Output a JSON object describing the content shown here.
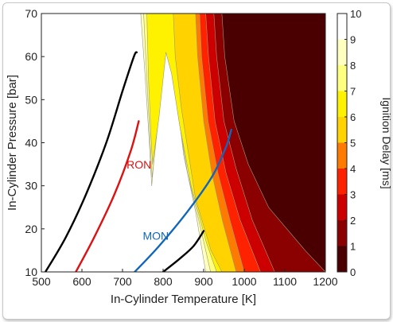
{
  "chart_data": {
    "type": "contour",
    "xlabel": "In-Cylinder Temperature [K]",
    "ylabel": "In-Cylinder Pressure [bar]",
    "colorbar_label": "Ignition Delay [ms]",
    "xlim": [
      500,
      1200
    ],
    "ylim": [
      10,
      70
    ],
    "xticks": [
      500,
      600,
      700,
      800,
      900,
      1000,
      1100,
      1200
    ],
    "yticks": [
      10,
      20,
      30,
      40,
      50,
      60,
      70
    ],
    "colorbar_ticks": [
      0,
      1,
      2,
      3,
      4,
      5,
      6,
      7,
      8,
      9,
      10
    ],
    "colorbar_levels": [
      {
        "from": 0,
        "to": 1,
        "color": "#4a0000"
      },
      {
        "from": 1,
        "to": 2,
        "color": "#8b0000"
      },
      {
        "from": 2,
        "to": 3,
        "color": "#cc0000"
      },
      {
        "from": 3,
        "to": 4,
        "color": "#ff2200"
      },
      {
        "from": 4,
        "to": 5,
        "color": "#ff7a00"
      },
      {
        "from": 5,
        "to": 6,
        "color": "#ffd200"
      },
      {
        "from": 6,
        "to": 7,
        "color": "#fff200"
      },
      {
        "from": 7,
        "to": 8,
        "color": "#ffff80"
      },
      {
        "from": 8,
        "to": 9,
        "color": "#ffffbf"
      },
      {
        "from": 9,
        "to": 10,
        "color": "#ffffff"
      }
    ],
    "contour_bands": [
      {
        "level": 8.5,
        "color": "#ffffbf",
        "points": [
          [
            745,
            70
          ],
          [
            756,
            55
          ],
          [
            766,
            40
          ],
          [
            772,
            30
          ],
          [
            785,
            44
          ],
          [
            805,
            63
          ],
          [
            818,
            61
          ],
          [
            834,
            50
          ],
          [
            851,
            37
          ],
          [
            880,
            24
          ],
          [
            905,
            10
          ],
          [
            1200,
            10
          ],
          [
            1200,
            70
          ]
        ]
      },
      {
        "level": 7.5,
        "color": "#ffff80",
        "points": [
          [
            752,
            70
          ],
          [
            760,
            55
          ],
          [
            768,
            40
          ],
          [
            773,
            32
          ],
          [
            788,
            45
          ],
          [
            806,
            62
          ],
          [
            818,
            59
          ],
          [
            836,
            47
          ],
          [
            860,
            33
          ],
          [
            893,
            20
          ],
          [
            917,
            10
          ],
          [
            1200,
            10
          ],
          [
            1200,
            70
          ]
        ]
      },
      {
        "level": 6.5,
        "color": "#fff200",
        "points": [
          [
            760,
            70
          ],
          [
            764,
            55
          ],
          [
            770,
            42
          ],
          [
            774,
            35
          ],
          [
            790,
            46
          ],
          [
            807,
            61
          ],
          [
            821,
            56
          ],
          [
            841,
            44
          ],
          [
            869,
            30
          ],
          [
            906,
            17
          ],
          [
            932,
            10
          ],
          [
            1200,
            10
          ],
          [
            1200,
            70
          ]
        ]
      },
      {
        "level": 5.5,
        "color": "#ffd200",
        "points": [
          [
            825,
            70
          ],
          [
            830,
            60
          ],
          [
            845,
            48
          ],
          [
            880,
            27
          ],
          [
            918,
            15
          ],
          [
            945,
            10
          ],
          [
            1200,
            10
          ],
          [
            1200,
            70
          ]
        ]
      },
      {
        "level": 4.5,
        "color": "#ff7a00",
        "points": [
          [
            880,
            70
          ],
          [
            885,
            60
          ],
          [
            900,
            45
          ],
          [
            920,
            33
          ],
          [
            946,
            22
          ],
          [
            980,
            10
          ],
          [
            1200,
            10
          ],
          [
            1200,
            70
          ]
        ]
      },
      {
        "level": 3.5,
        "color": "#ff2200",
        "points": [
          [
            890,
            70
          ],
          [
            895,
            60
          ],
          [
            911,
            45
          ],
          [
            935,
            33
          ],
          [
            965,
            22
          ],
          [
            1000,
            10
          ],
          [
            1200,
            10
          ],
          [
            1200,
            70
          ]
        ]
      },
      {
        "level": 2.5,
        "color": "#cc0000",
        "points": [
          [
            905,
            70
          ],
          [
            912,
            60
          ],
          [
            928,
            45
          ],
          [
            955,
            33
          ],
          [
            990,
            22
          ],
          [
            1040,
            10
          ],
          [
            1200,
            10
          ],
          [
            1200,
            70
          ]
        ]
      },
      {
        "level": 1.5,
        "color": "#8b0000",
        "points": [
          [
            925,
            70
          ],
          [
            932,
            60
          ],
          [
            950,
            45
          ],
          [
            980,
            34
          ],
          [
            1020,
            22
          ],
          [
            1075,
            10
          ],
          [
            1200,
            10
          ],
          [
            1200,
            70
          ]
        ]
      },
      {
        "level": 0.5,
        "color": "#4a0000",
        "points": [
          [
            945,
            70
          ],
          [
            952,
            60
          ],
          [
            975,
            45
          ],
          [
            1010,
            35
          ],
          [
            1060,
            25
          ],
          [
            1150,
            15
          ],
          [
            1200,
            10
          ],
          [
            1200,
            70
          ]
        ]
      }
    ],
    "series": [
      {
        "color": "#000000",
        "points": [
          [
            510,
            10
          ],
          [
            560,
            18
          ],
          [
            610,
            28
          ],
          [
            660,
            40
          ],
          [
            700,
            52
          ],
          [
            728,
            60
          ],
          [
            735,
            61
          ]
        ]
      },
      {
        "name": "RON",
        "color": "#dd1111",
        "points": [
          [
            585,
            10
          ],
          [
            630,
            18
          ],
          [
            680,
            28
          ],
          [
            720,
            38
          ],
          [
            740,
            45
          ]
        ]
      },
      {
        "name": "MON",
        "color": "#1166bb",
        "points": [
          [
            730,
            10
          ],
          [
            790,
            16
          ],
          [
            860,
            24
          ],
          [
            920,
            32
          ],
          [
            955,
            39
          ],
          [
            968,
            43
          ]
        ]
      },
      {
        "color": "#000000",
        "points": [
          [
            800,
            10
          ],
          [
            840,
            13
          ],
          [
            875,
            16
          ],
          [
            900,
            19.5
          ]
        ]
      }
    ],
    "annotations": [
      {
        "text": "RON",
        "x": 710,
        "y": 34,
        "color": "#dd1111"
      },
      {
        "text": "MON",
        "x": 750,
        "y": 17.5,
        "color": "#1166bb"
      }
    ],
    "grid": false
  }
}
